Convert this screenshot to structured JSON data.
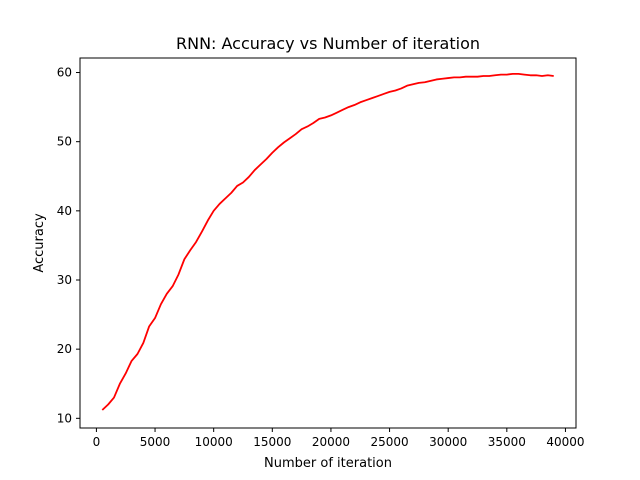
{
  "chart_data": {
    "type": "line",
    "title": "RNN: Accuracy vs Number of iteration",
    "xlabel": "Number of iteration",
    "ylabel": "Accuracy",
    "xlim": [
      -1400,
      40900
    ],
    "ylim": [
      8.6,
      62.1
    ],
    "xticks": [
      0,
      5000,
      10000,
      15000,
      20000,
      25000,
      30000,
      35000,
      40000
    ],
    "yticks": [
      10,
      20,
      30,
      40,
      50,
      60
    ],
    "grid": false,
    "legend": "none",
    "line_color": "#ff0000",
    "series": [
      {
        "x": [
          500,
          1000,
          1500,
          2000,
          2500,
          3000,
          3500,
          4000,
          4500,
          5000,
          5500,
          6000,
          6500,
          7000,
          7500,
          8000,
          8500,
          9000,
          9500,
          10000,
          10500,
          11000,
          11500,
          12000,
          12500,
          13000,
          13500,
          14000,
          14500,
          15000,
          15500,
          16000,
          16500,
          17000,
          17500,
          18000,
          18500,
          19000,
          19500,
          20000,
          20500,
          21000,
          21500,
          22000,
          22500,
          23000,
          23500,
          24000,
          24500,
          25000,
          25500,
          26000,
          26500,
          27000,
          27500,
          28000,
          28500,
          29000,
          29500,
          30000,
          30500,
          31000,
          31500,
          32000,
          32500,
          33000,
          33500,
          34000,
          34500,
          35000,
          35500,
          36000,
          36500,
          37000,
          37500,
          38000,
          38500,
          39000
        ],
        "values": [
          11.2,
          12.0,
          13.0,
          15.0,
          16.5,
          18.3,
          19.3,
          20.9,
          23.3,
          24.5,
          26.5,
          28.0,
          29.1,
          30.8,
          33.0,
          34.3,
          35.5,
          37.0,
          38.6,
          40.0,
          41.0,
          41.8,
          42.6,
          43.6,
          44.1,
          44.9,
          45.9,
          46.7,
          47.5,
          48.4,
          49.2,
          49.9,
          50.5,
          51.1,
          51.8,
          52.2,
          52.7,
          53.3,
          53.5,
          53.8,
          54.2,
          54.6,
          55.0,
          55.3,
          55.7,
          56.0,
          56.3,
          56.6,
          56.9,
          57.2,
          57.4,
          57.7,
          58.1,
          58.3,
          58.5,
          58.6,
          58.8,
          59.0,
          59.1,
          59.2,
          59.3,
          59.3,
          59.4,
          59.4,
          59.4,
          59.5,
          59.5,
          59.6,
          59.7,
          59.7,
          59.8,
          59.8,
          59.7,
          59.6,
          59.6,
          59.5,
          59.6,
          59.5
        ]
      }
    ]
  }
}
